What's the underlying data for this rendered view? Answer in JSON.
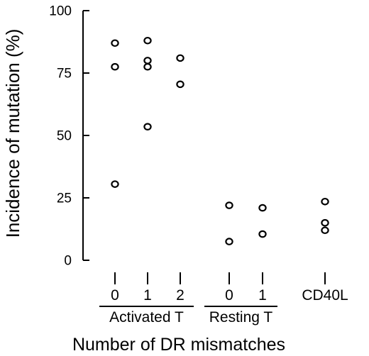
{
  "chart_data": {
    "type": "scatter",
    "xlabel": "Number of DR mismatches",
    "ylabel": "Incidence of mutation (%)",
    "ylim": [
      0,
      100
    ],
    "yticks": [
      0,
      25,
      50,
      75,
      100
    ],
    "categories": [
      {
        "label": "0",
        "group": "Activated T",
        "values": [
          87,
          77.5,
          30.5
        ]
      },
      {
        "label": "1",
        "group": "Activated T",
        "values": [
          88,
          80,
          77.5,
          53.5
        ]
      },
      {
        "label": "2",
        "group": "Activated T",
        "values": [
          81,
          70.5
        ]
      },
      {
        "label": "0",
        "group": "Resting T",
        "values": [
          22,
          7.5
        ]
      },
      {
        "label": "1",
        "group": "Resting T",
        "values": [
          21,
          10.5
        ]
      },
      {
        "label": "CD40L",
        "group": "",
        "values": [
          23.5,
          15,
          12
        ]
      }
    ],
    "groups": [
      {
        "name": "Activated T"
      },
      {
        "name": "Resting T"
      }
    ]
  }
}
